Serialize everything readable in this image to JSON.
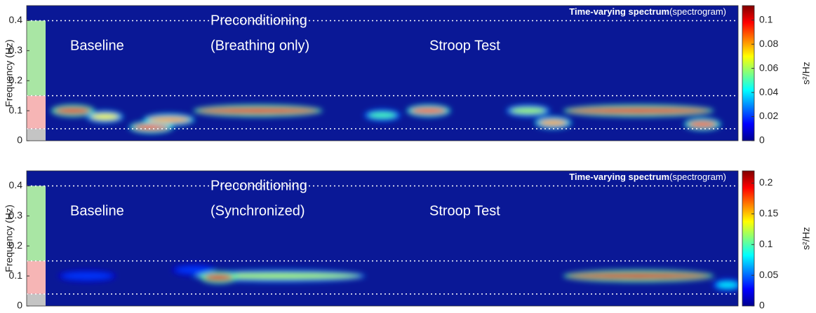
{
  "chart_data": [
    {
      "type": "spectrogram",
      "title": "Time-varying spectrum",
      "subtitle": "(spectrogram)",
      "ylabel": "Frequency (Hz)",
      "ylim": [
        0,
        0.45
      ],
      "yticks": [
        0,
        0.1,
        0.2,
        0.3,
        0.4
      ],
      "xlim": [
        0,
        100
      ],
      "ref_lines": [
        0.04,
        0.15,
        0.4
      ],
      "band_colors": [
        "#c4c4c4",
        "#f6b5b5",
        "#a9e6a4"
      ],
      "colorbar": {
        "label": "s²/Hz",
        "lim": [
          0,
          0.112
        ],
        "ticks": [
          0,
          0.02,
          0.04,
          0.06,
          0.08,
          0.1
        ]
      },
      "annotations": [
        "Baseline",
        "Preconditioning",
        "(Breathing only)",
        "Stroop Test"
      ],
      "streaks": [
        {
          "x": [
            4,
            9
          ],
          "y": 0.1,
          "value": 0.1
        },
        {
          "x": [
            9,
            13
          ],
          "y": 0.08,
          "value": 0.07
        },
        {
          "x": [
            15,
            20
          ],
          "y": 0.045,
          "value": 0.09
        },
        {
          "x": [
            17,
            23
          ],
          "y": 0.07,
          "value": 0.08
        },
        {
          "x": [
            24,
            41
          ],
          "y": 0.1,
          "value": 0.1
        },
        {
          "x": [
            48,
            52
          ],
          "y": 0.085,
          "value": 0.05
        },
        {
          "x": [
            54,
            59
          ],
          "y": 0.1,
          "value": 0.09
        },
        {
          "x": [
            68,
            73
          ],
          "y": 0.1,
          "value": 0.06
        },
        {
          "x": [
            72,
            76
          ],
          "y": 0.06,
          "value": 0.08
        },
        {
          "x": [
            76,
            96
          ],
          "y": 0.1,
          "value": 0.1
        },
        {
          "x": [
            93,
            97
          ],
          "y": 0.055,
          "value": 0.09
        }
      ]
    },
    {
      "type": "spectrogram",
      "title": "Time-varying spectrum",
      "subtitle": "(spectrogram)",
      "ylabel": "Frequency (Hz)",
      "ylim": [
        0,
        0.45
      ],
      "yticks": [
        0,
        0.1,
        0.2,
        0.3,
        0.4
      ],
      "xlim": [
        0,
        100
      ],
      "ref_lines": [
        0.04,
        0.15,
        0.4
      ],
      "band_colors": [
        "#c4c4c4",
        "#f6b5b5",
        "#a9e6a4"
      ],
      "colorbar": {
        "label": "s²/Hz",
        "lim": [
          0,
          0.22
        ],
        "ticks": [
          0,
          0.05,
          0.1,
          0.15,
          0.2
        ]
      },
      "annotations": [
        "Baseline",
        "Preconditioning",
        "(Synchronized)",
        "Stroop Test"
      ],
      "streaks": [
        {
          "x": [
            5,
            12
          ],
          "y": 0.1,
          "value": 0.04
        },
        {
          "x": [
            21,
            26
          ],
          "y": 0.12,
          "value": 0.04
        },
        {
          "x": [
            24,
            47
          ],
          "y": 0.1,
          "value": 0.12
        },
        {
          "x": [
            25,
            29
          ],
          "y": 0.095,
          "value": 0.2
        },
        {
          "x": [
            76,
            96
          ],
          "y": 0.1,
          "value": 0.2
        },
        {
          "x": [
            97,
            100
          ],
          "y": 0.07,
          "value": 0.08
        }
      ]
    }
  ]
}
